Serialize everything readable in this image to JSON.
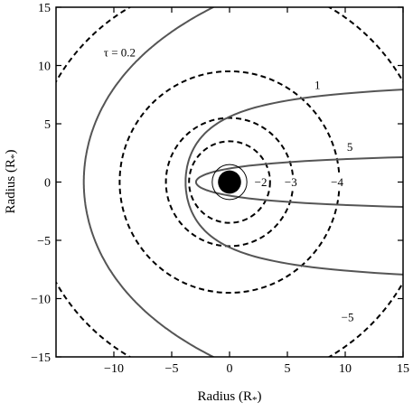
{
  "chart_data": {
    "type": "contour",
    "xlabel": "Radius (R",
    "xlabel_sub": "*",
    "xlabel_end": ")",
    "ylabel": "Radius (R",
    "ylabel_sub": "*",
    "ylabel_end": ")",
    "xlim": [
      -15,
      15
    ],
    "ylim": [
      -15,
      15
    ],
    "xticks": [
      -10,
      -5,
      0,
      5,
      10,
      15
    ],
    "xtick_labels": [
      "−10",
      "−5",
      "0",
      "5",
      "10",
      "15"
    ],
    "yticks": [
      -15,
      -10,
      -5,
      0,
      5,
      10,
      15
    ],
    "ytick_labels": [
      "−15",
      "−10",
      "−5",
      "0",
      "5",
      "10",
      "15"
    ],
    "star": {
      "x": 0,
      "y": 0,
      "radius": 1
    },
    "inner_circle": {
      "radius": 1.5
    },
    "dashed_contours": [
      {
        "label": "−2",
        "radius": 3.5,
        "label_x": 2.7,
        "label_y": -0.1
      },
      {
        "label": "−3",
        "radius": 5.5,
        "label_x": 5.3,
        "label_y": -0.1
      },
      {
        "label": "−4",
        "radius": 9.5,
        "label_x": 9.3,
        "label_y": -0.1
      },
      {
        "label": "−5",
        "radius": 17.3,
        "label_x": 10.2,
        "label_y": -11.7
      }
    ],
    "solid_contours": [
      {
        "label": "5",
        "vertex_x": -2.9,
        "asymptote": 2.9,
        "bend": 0.9,
        "label_x": 10.4,
        "label_y": 2.9
      },
      {
        "label": "1",
        "vertex_x": -3.8,
        "asymptote": 9.2,
        "bend": 5.0,
        "label_x": 7.6,
        "label_y": 8.2
      },
      {
        "label": "τ = 0.2",
        "vertex_x": -12.6,
        "asymptote": 30.0,
        "bend": 13.0,
        "label_x": -9.5,
        "label_y": 11.0
      }
    ]
  }
}
